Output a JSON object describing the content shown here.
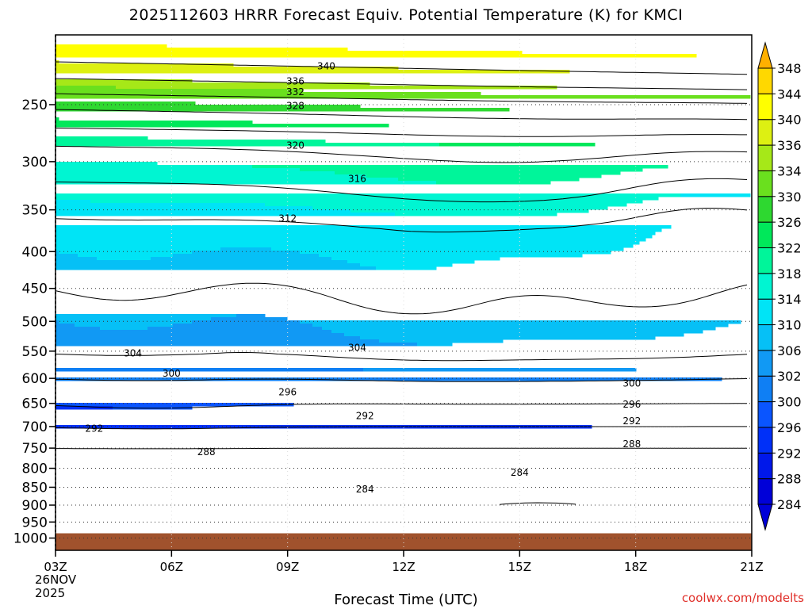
{
  "chart_data": {
    "type": "contour",
    "title": "2025112603 HRRR Forecast Equiv. Potential Temperature (K) for KMCI",
    "xlabel": "Forecast Time (UTC)",
    "ylabel": "Pressure (hPa)",
    "x_ticks": [
      "03Z",
      "06Z",
      "09Z",
      "12Z",
      "15Z",
      "18Z",
      "21Z"
    ],
    "x_hours": [
      0,
      3,
      6,
      9,
      12,
      15,
      18
    ],
    "date_lines": [
      "26NOV",
      "2025"
    ],
    "y_ticks": [
      250,
      300,
      350,
      400,
      450,
      500,
      550,
      600,
      650,
      700,
      750,
      800,
      850,
      900,
      950,
      1000
    ],
    "ylim": [
      1040,
      200
    ],
    "surface_pressure": 1000,
    "colorbar": {
      "levels": [
        284,
        288,
        292,
        296,
        300,
        302,
        306,
        310,
        314,
        318,
        322,
        326,
        330,
        334,
        336,
        340,
        344,
        348
      ],
      "colors": [
        "#0000d8",
        "#0018ea",
        "#0030f8",
        "#0a55ff",
        "#0f7ff4",
        "#1199f4",
        "#06c0f6",
        "#00e4f6",
        "#00f5d2",
        "#00f59a",
        "#00e85a",
        "#2ed830",
        "#6ae01e",
        "#a6e818",
        "#ddf012",
        "#ffff00",
        "#ffd800",
        "#ffb000"
      ]
    },
    "contour_levels": [
      284,
      288,
      292,
      296,
      300,
      304,
      308,
      312,
      316,
      320,
      324,
      328,
      332,
      336,
      340
    ],
    "contour_labels": [
      {
        "value": "340",
        "hour": 7.0,
        "pressure": 221
      },
      {
        "value": "336",
        "hour": 6.2,
        "pressure": 232
      },
      {
        "value": "332",
        "hour": 6.2,
        "pressure": 240
      },
      {
        "value": "328",
        "hour": 6.2,
        "pressure": 251
      },
      {
        "value": "320",
        "hour": 6.2,
        "pressure": 285
      },
      {
        "value": "316",
        "hour": 7.8,
        "pressure": 317
      },
      {
        "value": "312",
        "hour": 6.0,
        "pressure": 360
      },
      {
        "value": "304",
        "hour": 2.0,
        "pressure": 554
      },
      {
        "value": "304",
        "hour": 7.8,
        "pressure": 544
      },
      {
        "value": "300",
        "hour": 3.0,
        "pressure": 591
      },
      {
        "value": "300",
        "hour": 14.9,
        "pressure": 610
      },
      {
        "value": "296",
        "hour": 6.0,
        "pressure": 627
      },
      {
        "value": "296",
        "hour": 14.9,
        "pressure": 652
      },
      {
        "value": "292",
        "hour": 1.0,
        "pressure": 705
      },
      {
        "value": "292",
        "hour": 8.0,
        "pressure": 677
      },
      {
        "value": "292",
        "hour": 14.9,
        "pressure": 688
      },
      {
        "value": "288",
        "hour": 3.9,
        "pressure": 759
      },
      {
        "value": "288",
        "hour": 14.9,
        "pressure": 740
      },
      {
        "value": "284",
        "hour": 8.0,
        "pressure": 856
      },
      {
        "value": "284",
        "hour": 12.0,
        "pressure": 811
      }
    ]
  },
  "watermark": "coolwx.com/modelts"
}
